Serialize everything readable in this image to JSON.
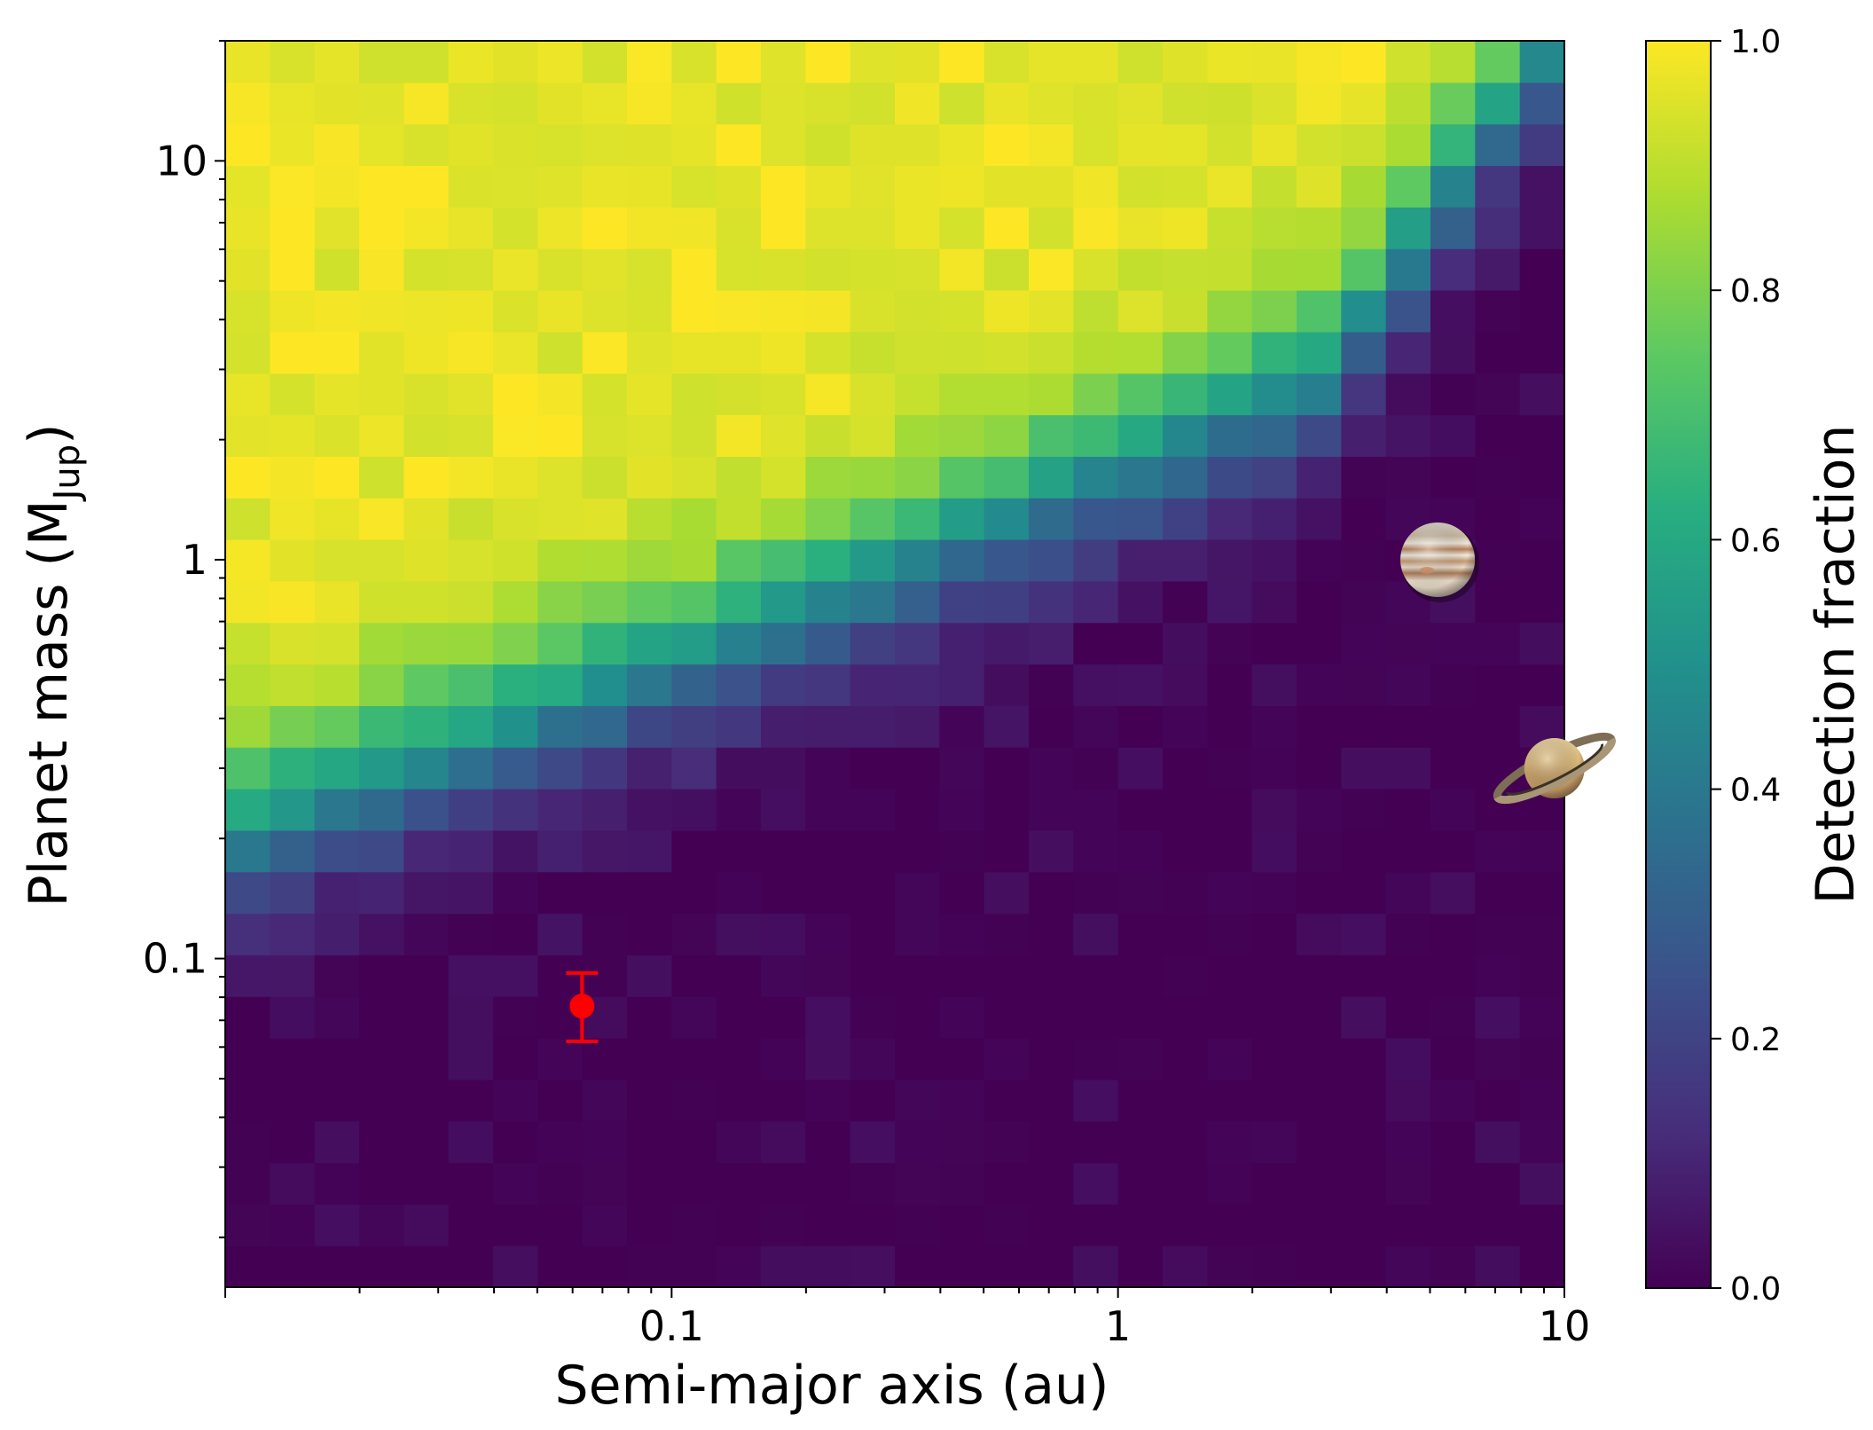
{
  "chart_data": {
    "type": "heatmap",
    "title": "",
    "xlabel": "Semi-major axis (au)",
    "ylabel": "Planet mass (M",
    "ylabel_sub": "Jup",
    "ylabel_close": ")",
    "xscale": "log",
    "yscale": "log",
    "xlim": [
      0.01,
      10
    ],
    "ylim": [
      0.015,
      20
    ],
    "x_tick_labels": [
      {
        "value": 0.1,
        "label": "0.1"
      },
      {
        "value": 1,
        "label": "1"
      },
      {
        "value": 10,
        "label": "10"
      }
    ],
    "y_tick_labels": [
      {
        "value": 0.1,
        "label": "0.1"
      },
      {
        "value": 1,
        "label": "1"
      },
      {
        "value": 10,
        "label": "10"
      }
    ],
    "colorbar": {
      "label": "Detection fraction",
      "colormap": "viridis",
      "range": [
        0,
        1
      ],
      "ticks": [
        "0.0",
        "0.2",
        "0.4",
        "0.6",
        "0.8",
        "1.0"
      ]
    },
    "grid_size": {
      "nx": 30,
      "ny": 30
    },
    "detection_boundary": {
      "description_points": [
        [
          0.01,
          0.2
        ],
        [
          0.1,
          0.55
        ],
        [
          1,
          1.7
        ],
        [
          3,
          3.0
        ],
        [
          6,
          10
        ],
        [
          10,
          22
        ]
      ]
    },
    "data_point": {
      "x": 0.063,
      "y": 0.076,
      "y_err_low": 0.062,
      "y_err_high": 0.092,
      "color": "#ff0000"
    },
    "annotations": [
      {
        "name": "jupiter",
        "x": 5.2,
        "y": 1.0
      },
      {
        "name": "saturn",
        "x": 9.5,
        "y": 0.3
      }
    ]
  }
}
